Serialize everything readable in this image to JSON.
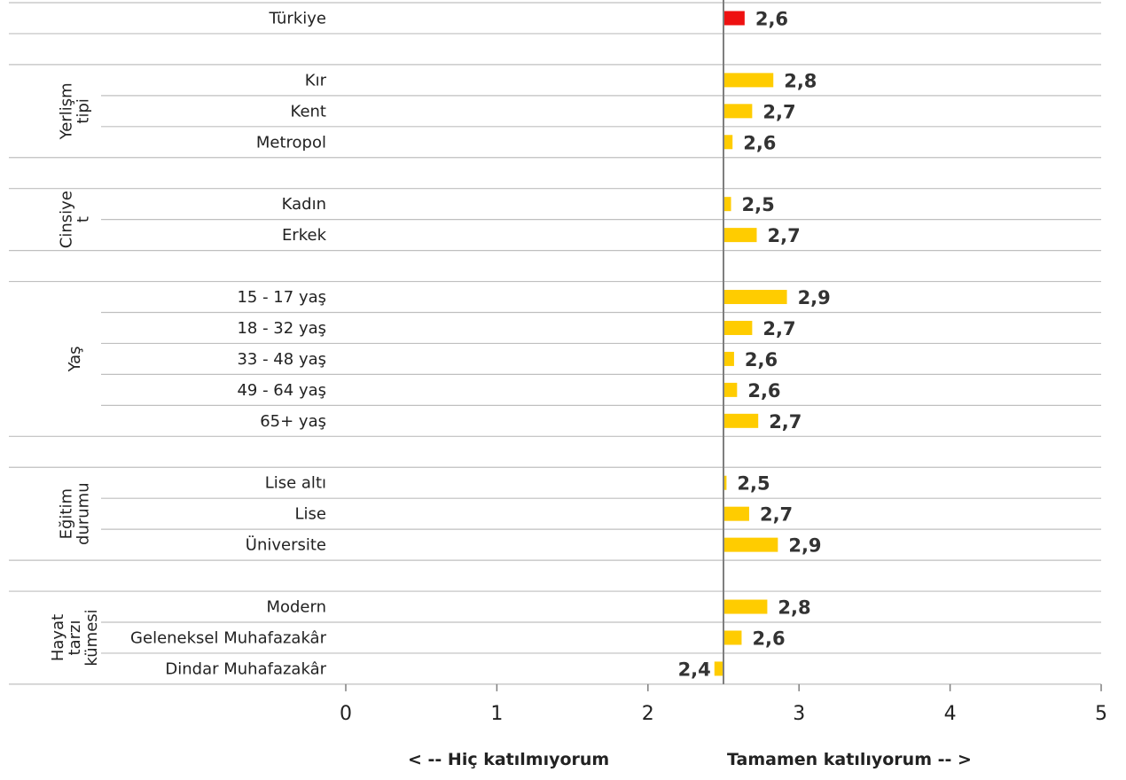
{
  "chart_data": {
    "type": "bar",
    "orientation": "horizontal",
    "baseline_value": 2.5,
    "xlim": [
      0,
      5
    ],
    "x_ticks": [
      "0",
      "1",
      "2",
      "3",
      "4",
      "5"
    ],
    "grid": "horizontal separators",
    "rows": [
      {
        "group": "",
        "label": "Türkiye",
        "value": 2.64,
        "value_label": "2,6",
        "highlight": true
      },
      {
        "gap": true
      },
      {
        "group": "Yerlişm tipi",
        "label": "Kır",
        "value": 2.83,
        "value_label": "2,8"
      },
      {
        "group": "Yerlişm tipi",
        "label": "Kent",
        "value": 2.69,
        "value_label": "2,7"
      },
      {
        "group": "Yerlişm tipi",
        "label": "Metropol",
        "value": 2.56,
        "value_label": "2,6"
      },
      {
        "gap": true
      },
      {
        "group": "Cinsiyet",
        "label": "Kadın",
        "value": 2.55,
        "value_label": "2,5"
      },
      {
        "group": "Cinsiyet",
        "label": "Erkek",
        "value": 2.72,
        "value_label": "2,7"
      },
      {
        "gap": true
      },
      {
        "group": "Yaş",
        "label": "15 - 17 yaş",
        "value": 2.92,
        "value_label": "2,9"
      },
      {
        "group": "Yaş",
        "label": "18 - 32 yaş",
        "value": 2.69,
        "value_label": "2,7"
      },
      {
        "group": "Yaş",
        "label": "33 - 48 yaş",
        "value": 2.57,
        "value_label": "2,6"
      },
      {
        "group": "Yaş",
        "label": "49 - 64 yaş",
        "value": 2.59,
        "value_label": "2,6"
      },
      {
        "group": "Yaş",
        "label": "65+ yaş",
        "value": 2.73,
        "value_label": "2,7"
      },
      {
        "gap": true
      },
      {
        "group": "Eğitim durumu",
        "label": "Lise altı",
        "value": 2.52,
        "value_label": "2,5"
      },
      {
        "group": "Eğitim durumu",
        "label": "Lise",
        "value": 2.67,
        "value_label": "2,7"
      },
      {
        "group": "Eğitim durumu",
        "label": "Üniversite",
        "value": 2.86,
        "value_label": "2,9"
      },
      {
        "gap": true
      },
      {
        "group": "Hayat tarzı kümesi",
        "label": "Modern",
        "value": 2.79,
        "value_label": "2,8"
      },
      {
        "group": "Hayat tarzı kümesi",
        "label": "Geleneksel Muhafazakâr",
        "value": 2.62,
        "value_label": "2,6"
      },
      {
        "group": "Hayat tarzı kümesi",
        "label": "Dindar Muhafazakâr",
        "value": 2.44,
        "value_label": "2,4"
      }
    ],
    "groups": [
      {
        "name": "Yerlişm tipi",
        "lines": [
          "Yerlişm",
          "tipi"
        ]
      },
      {
        "name": "Cinsiyet",
        "lines": [
          "Cinsiye",
          "t"
        ]
      },
      {
        "name": "Yaş",
        "lines": [
          "Yaş"
        ]
      },
      {
        "name": "Eğitim durumu",
        "lines": [
          "Eğitim",
          "durumu"
        ]
      },
      {
        "name": "Hayat tarzı kümesi",
        "lines": [
          "Hayat",
          "tarzı",
          "kümesi"
        ]
      }
    ],
    "annotations": {
      "left": "< -- Hiç katılmıyorum",
      "right": "Tamamen katılıyorum -- >"
    },
    "colors": {
      "bar": "#FFCC00",
      "highlight": "#EE1111",
      "grid": "#BFBFBF",
      "axis": "#7F7F7F"
    }
  }
}
